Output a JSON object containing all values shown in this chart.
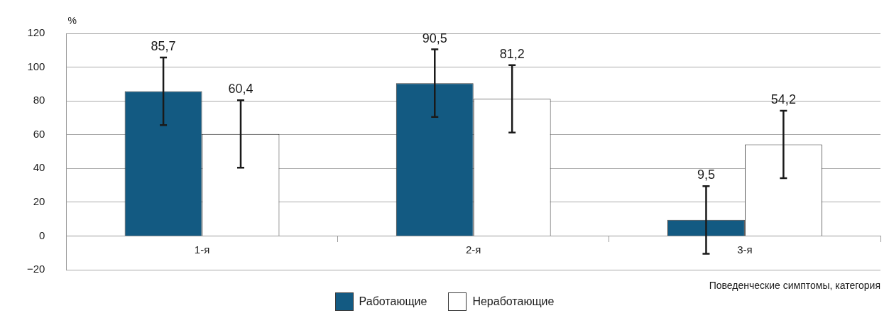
{
  "chart_data": {
    "type": "bar",
    "ylabel": "%",
    "xlabel": "Поведенческие симптомы, категория",
    "categories": [
      "1-я",
      "2-я",
      "3-я"
    ],
    "series": [
      {
        "name": "Работающие",
        "color": "#135a82",
        "values": [
          85.7,
          90.5,
          9.5
        ],
        "errors": [
          20,
          20,
          20
        ],
        "value_labels": [
          "85,7",
          "90,5",
          "9,5"
        ]
      },
      {
        "name": "Неработающие",
        "color": "#ffffff",
        "values": [
          60.4,
          81.2,
          54.2
        ],
        "errors": [
          20,
          20,
          20
        ],
        "value_labels": [
          "60,4",
          "81,2",
          "54,2"
        ]
      }
    ],
    "ylim": [
      -20,
      120
    ],
    "yticks": [
      {
        "value": -20,
        "label": "−20"
      },
      0,
      20,
      40,
      60,
      80,
      100,
      120
    ],
    "grid": "y",
    "legend": "bottom"
  }
}
